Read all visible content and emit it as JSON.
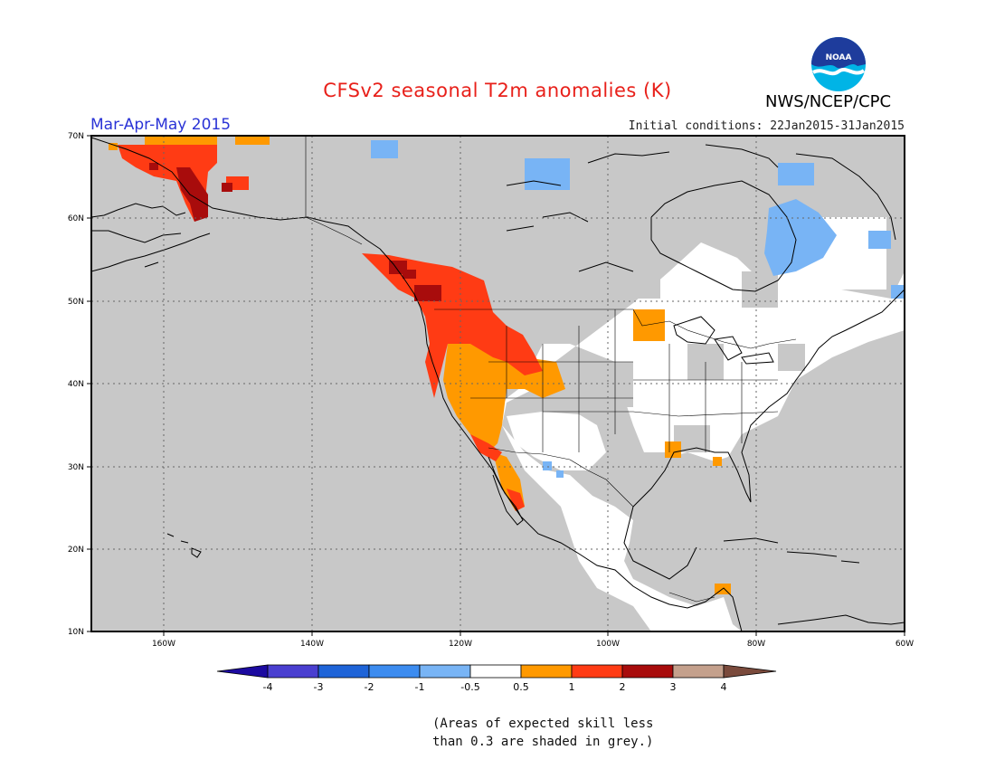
{
  "header": {
    "title": "CFSv2 seasonal T2m anomalies (K)",
    "season": "Mar-Apr-May 2015",
    "initial_conditions": "Initial conditions: 22Jan2015-31Jan2015",
    "agency": "NWS/NCEP/CPC",
    "logo_text": "NOAA"
  },
  "map": {
    "lat_labels": [
      "70N",
      "60N",
      "50N",
      "40N",
      "30N",
      "20N",
      "10N"
    ],
    "lon_labels": [
      "160W",
      "140W",
      "120W",
      "100W",
      "80W",
      "60W"
    ],
    "colors": {
      "skill_mask_grey": "#c8c8c8",
      "land_neutral": "#ffffff",
      "coastline": "#000000"
    }
  },
  "colorbar": {
    "labels": [
      "-4",
      "-3",
      "-2",
      "-1",
      "-0.5",
      "0.5",
      "1",
      "2",
      "3",
      "4"
    ],
    "colors": [
      "#1c0aa0",
      "#4a3fd0",
      "#1e64d8",
      "#3c8cf0",
      "#78b4f5",
      "#ffffff",
      "#ff9900",
      "#ff3b14",
      "#a80c0c",
      "#c4a08c",
      "#7a4a3c"
    ]
  },
  "note": {
    "line1": "(Areas of expected skill less",
    "line2": "than 0.3 are shaded in grey.)"
  }
}
